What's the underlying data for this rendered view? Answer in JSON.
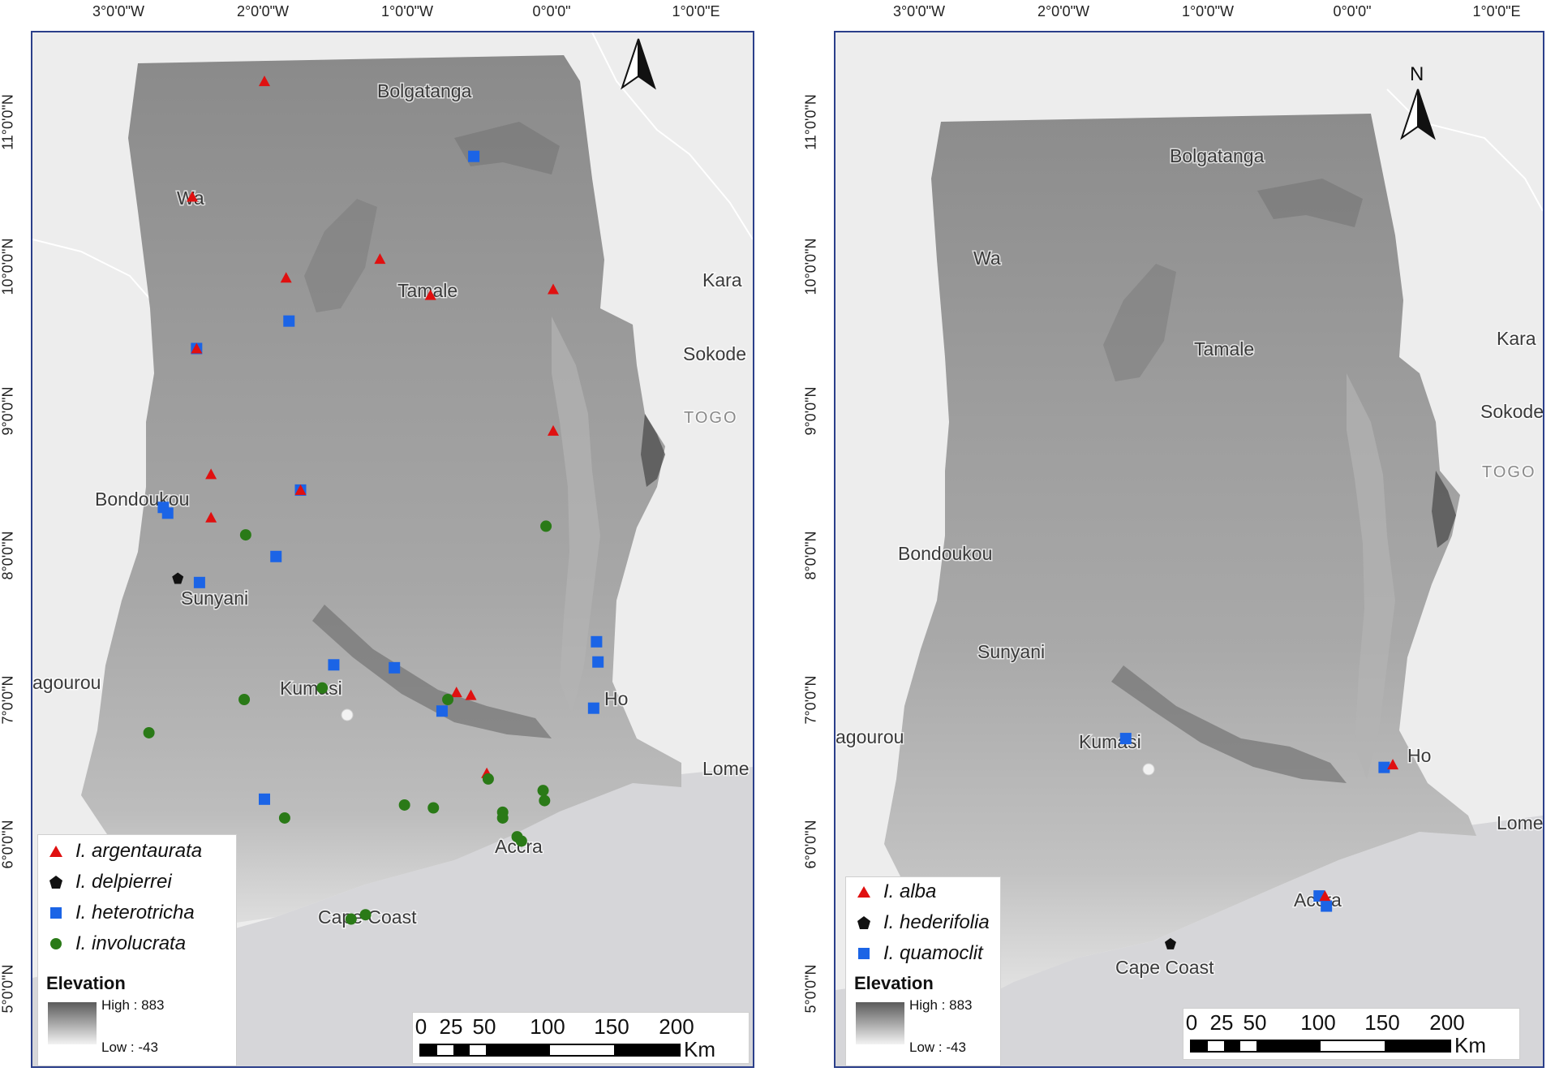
{
  "colors": {
    "frame": "#2b3f8a",
    "triangle": "#e01010",
    "square": "#1b64e6",
    "circle": "#2a7a17",
    "pentagon": "#111111",
    "sea": "#d6d6d9",
    "land_outside": "#ededed"
  },
  "left_panel": {
    "top_ticks": [
      "3°0'0\"W",
      "2°0'0\"W",
      "1°0'0\"W",
      "0°0'0\"",
      "1°0'0\"E"
    ],
    "left_ticks": [
      "11°0'0\"N",
      "10°0'0\"N",
      "9°0'0\"N",
      "8°0'0\"N",
      "7°0'0\"N",
      "6°0'0\"N",
      "5°0'0\"N"
    ],
    "cities": [
      "Bolgatanga",
      "Wa",
      "Tamale",
      "Kara",
      "Sokode",
      "TOGO",
      "Bondoukou",
      "Sunyani",
      "agourou",
      "Kumasi",
      "Ho",
      "Lome",
      "Accra",
      "Cape Coast"
    ],
    "north_label": "",
    "legend": {
      "species": [
        {
          "name": "I. argentaurata",
          "symbol": "triangle-icon"
        },
        {
          "name": "I. delpierrei",
          "symbol": "pentagon-icon"
        },
        {
          "name": "I. heterotricha",
          "symbol": "square-icon"
        },
        {
          "name": "I. involucrata",
          "symbol": "circle-icon"
        }
      ],
      "elevation_title": "Elevation",
      "high": "High : 883",
      "low": "Low : -43"
    },
    "scale": {
      "labels": [
        "0",
        "25",
        "50",
        "100",
        "150",
        "200"
      ],
      "unit": "Km"
    }
  },
  "right_panel": {
    "top_ticks": [
      "3°0'0\"W",
      "2°0'0\"W",
      "1°0'0\"W",
      "0°0'0\"",
      "1°0'0\"E"
    ],
    "left_ticks": [
      "11°0'0\"N",
      "10°0'0\"N",
      "9°0'0\"N",
      "8°0'0\"N",
      "7°0'0\"N",
      "6°0'0\"N",
      "5°0'0\"N"
    ],
    "cities": [
      "Bolgatanga",
      "Wa",
      "Tamale",
      "Kara",
      "Sokode",
      "TOGO",
      "Bondoukou",
      "Sunyani",
      "agourou",
      "Kumasi",
      "Ho",
      "Lome",
      "Accra",
      "Cape Coast"
    ],
    "north_label": "N",
    "legend": {
      "species": [
        {
          "name": "I. alba",
          "symbol": "triangle-icon"
        },
        {
          "name": "I. hederifolia",
          "symbol": "pentagon-icon"
        },
        {
          "name": "I. quamoclit",
          "symbol": "square-icon"
        }
      ],
      "elevation_title": "Elevation",
      "high": "High : 883",
      "low": "Low : -43"
    },
    "scale": {
      "labels": [
        "0",
        "25",
        "50",
        "100",
        "150",
        "200"
      ],
      "unit": "Km"
    }
  },
  "occurrences_left": [
    {
      "species": "I. argentaurata",
      "lon": -2.0,
      "lat": 11.28
    },
    {
      "species": "I. argentaurata",
      "lon": -2.5,
      "lat": 10.48
    },
    {
      "species": "I. argentaurata",
      "lon": -1.2,
      "lat": 10.05
    },
    {
      "species": "I. argentaurata",
      "lon": -1.85,
      "lat": 9.92
    },
    {
      "species": "I. argentaurata",
      "lon": -0.85,
      "lat": 9.8
    },
    {
      "species": "I. argentaurata",
      "lon": 0.0,
      "lat": 9.84
    },
    {
      "species": "I. argentaurata",
      "lon": -2.47,
      "lat": 9.43
    },
    {
      "species": "I. argentaurata",
      "lon": 0.0,
      "lat": 8.86
    },
    {
      "species": "I. argentaurata",
      "lon": -2.37,
      "lat": 8.56
    },
    {
      "species": "I. argentaurata",
      "lon": -1.75,
      "lat": 8.45
    },
    {
      "species": "I. argentaurata",
      "lon": -2.37,
      "lat": 8.26
    },
    {
      "species": "I. argentaurata",
      "lon": -0.67,
      "lat": 7.05
    },
    {
      "species": "I. argentaurata",
      "lon": -0.57,
      "lat": 7.03
    },
    {
      "species": "I. argentaurata",
      "lon": -0.46,
      "lat": 6.49
    },
    {
      "species": "I. delpierrei",
      "lon": -2.6,
      "lat": 7.84
    },
    {
      "species": "I. heterotricha",
      "lon": -0.55,
      "lat": 10.76
    },
    {
      "species": "I. heterotricha",
      "lon": -1.83,
      "lat": 9.62
    },
    {
      "species": "I. heterotricha",
      "lon": -2.47,
      "lat": 9.43
    },
    {
      "species": "I. heterotricha",
      "lon": -1.75,
      "lat": 8.45
    },
    {
      "species": "I. heterotricha",
      "lon": -2.7,
      "lat": 8.33
    },
    {
      "species": "I. heterotricha",
      "lon": -2.67,
      "lat": 8.29
    },
    {
      "species": "I. heterotricha",
      "lon": -1.92,
      "lat": 7.99
    },
    {
      "species": "I. heterotricha",
      "lon": -2.45,
      "lat": 7.81
    },
    {
      "species": "I. heterotricha",
      "lon": -1.52,
      "lat": 7.24
    },
    {
      "species": "I. heterotricha",
      "lon": -1.1,
      "lat": 7.22
    },
    {
      "species": "I. heterotricha",
      "lon": 0.3,
      "lat": 7.4
    },
    {
      "species": "I. heterotricha",
      "lon": 0.31,
      "lat": 7.26
    },
    {
      "species": "I. heterotricha",
      "lon": 0.28,
      "lat": 6.94
    },
    {
      "species": "I. heterotricha",
      "lon": -0.77,
      "lat": 6.92
    },
    {
      "species": "I. heterotricha",
      "lon": -2.0,
      "lat": 6.31
    },
    {
      "species": "I. involucrata",
      "lon": -0.05,
      "lat": 8.2
    },
    {
      "species": "I. involucrata",
      "lon": -2.13,
      "lat": 8.14
    },
    {
      "species": "I. involucrata",
      "lon": -1.6,
      "lat": 7.08
    },
    {
      "species": "I. involucrata",
      "lon": -2.14,
      "lat": 7.0
    },
    {
      "species": "I. involucrata",
      "lon": -0.73,
      "lat": 7.0
    },
    {
      "species": "I. involucrata",
      "lon": -2.8,
      "lat": 6.77
    },
    {
      "species": "I. involucrata",
      "lon": -0.45,
      "lat": 6.45
    },
    {
      "species": "I. involucrata",
      "lon": -0.07,
      "lat": 6.37
    },
    {
      "species": "I. involucrata",
      "lon": -0.06,
      "lat": 6.3
    },
    {
      "species": "I. involucrata",
      "lon": -1.03,
      "lat": 6.27
    },
    {
      "species": "I. involucrata",
      "lon": -0.83,
      "lat": 6.25
    },
    {
      "species": "I. involucrata",
      "lon": -0.35,
      "lat": 6.22
    },
    {
      "species": "I. involucrata",
      "lon": -0.35,
      "lat": 6.18
    },
    {
      "species": "I. involucrata",
      "lon": -1.86,
      "lat": 6.18
    },
    {
      "species": "I. involucrata",
      "lon": -0.25,
      "lat": 6.05
    },
    {
      "species": "I. involucrata",
      "lon": -0.22,
      "lat": 6.02
    },
    {
      "species": "I. involucrata",
      "lon": -1.3,
      "lat": 5.51
    },
    {
      "species": "I. involucrata",
      "lon": -1.4,
      "lat": 5.48
    }
  ],
  "occurrences_right": [
    {
      "species": "I. quamoclit",
      "lon": -1.58,
      "lat": 6.73
    },
    {
      "species": "I. quamoclit",
      "lon": 0.21,
      "lat": 6.53
    },
    {
      "species": "I. alba",
      "lon": 0.27,
      "lat": 6.55
    },
    {
      "species": "I. quamoclit",
      "lon": -0.24,
      "lat": 5.64
    },
    {
      "species": "I. alba",
      "lon": -0.2,
      "lat": 5.64
    },
    {
      "species": "I. quamoclit",
      "lon": -0.19,
      "lat": 5.57
    },
    {
      "species": "I. hederifolia",
      "lon": -1.27,
      "lat": 5.31
    }
  ]
}
